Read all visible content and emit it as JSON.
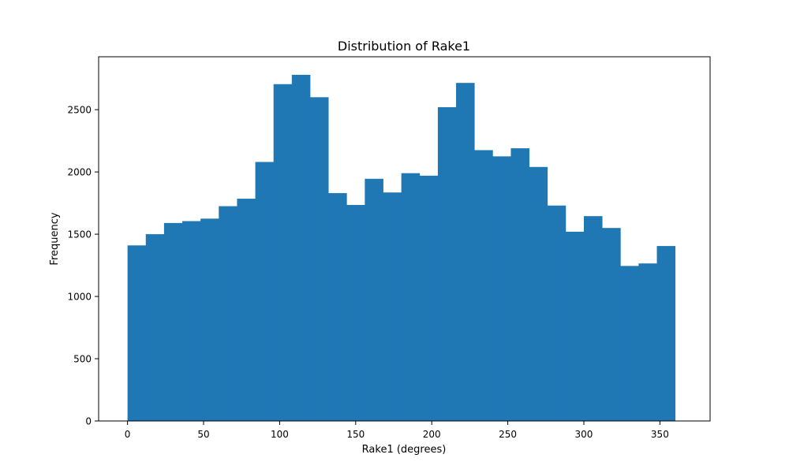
{
  "chart_data": {
    "type": "bar",
    "title": "Distribution of Rake1",
    "xlabel": "Rake1 (degrees)",
    "ylabel": "Frequency",
    "xlim": [
      -19,
      383
    ],
    "ylim": [
      0,
      2925
    ],
    "xticks": [
      0,
      50,
      100,
      150,
      200,
      250,
      300,
      350
    ],
    "yticks": [
      0,
      500,
      1000,
      1500,
      2000,
      2500
    ],
    "bin_start": 0,
    "bin_end": 360,
    "bins": 30,
    "values": [
      1410,
      1500,
      1590,
      1605,
      1625,
      1725,
      1785,
      2080,
      2705,
      2780,
      2600,
      1830,
      1735,
      1945,
      1835,
      1990,
      1970,
      2520,
      2715,
      2175,
      2125,
      2190,
      2040,
      1730,
      1520,
      1645,
      1550,
      1245,
      1265,
      1405
    ],
    "bar_color": "#1f77b4",
    "grid": false
  }
}
